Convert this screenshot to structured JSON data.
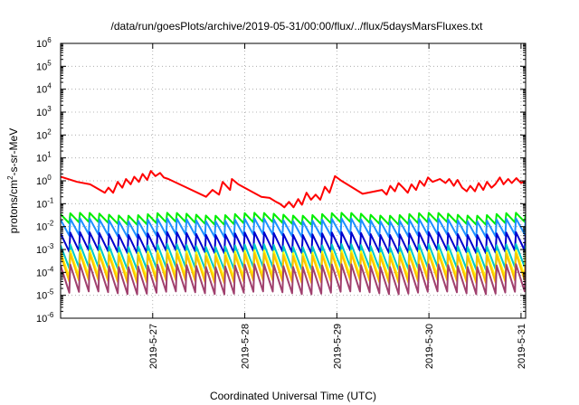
{
  "chart_data": {
    "type": "line",
    "title": "/data/run/goesPlots/archive/2019-05-31/00:00/flux/../flux/5daysMarsFluxes.txt",
    "xlabel": "Coordinated Universal Time (UTC)",
    "ylabel": {
      "base": "protons/cm",
      "sup": "2",
      "rest": "-s-sr-MeV"
    },
    "yscale": "log",
    "ylim": [
      1e-06,
      1000000.0
    ],
    "xlim": [
      0,
      5.05
    ],
    "x_ticks": [
      {
        "value": 1,
        "label": "2019-5-27"
      },
      {
        "value": 2,
        "label": "2019-5-28"
      },
      {
        "value": 3,
        "label": "2019-5-29"
      },
      {
        "value": 4,
        "label": "2019-5-30"
      },
      {
        "value": 5,
        "label": "2019-5-31"
      }
    ],
    "y_ticks": [
      {
        "value": 1e-06,
        "base": "10",
        "exp": "-6"
      },
      {
        "value": 1e-05,
        "base": "10",
        "exp": "-5"
      },
      {
        "value": 0.0001,
        "base": "10",
        "exp": "-4"
      },
      {
        "value": 0.001,
        "base": "10",
        "exp": "-3"
      },
      {
        "value": 0.01,
        "base": "10",
        "exp": "-2"
      },
      {
        "value": 0.1,
        "base": "10",
        "exp": "-1"
      },
      {
        "value": 1,
        "base": "10",
        "exp": "0"
      },
      {
        "value": 10,
        "base": "10",
        "exp": "1"
      },
      {
        "value": 100,
        "base": "10",
        "exp": "2"
      },
      {
        "value": 1000,
        "base": "10",
        "exp": "3"
      },
      {
        "value": 10000,
        "base": "10",
        "exp": "4"
      },
      {
        "value": 100000,
        "base": "10",
        "exp": "5"
      },
      {
        "value": 1000000,
        "base": "10",
        "exp": "6"
      }
    ],
    "grid": "dotted",
    "series": [
      {
        "color": "#ff0000",
        "x": [
          0,
          0.18,
          0.32,
          0.48,
          0.52,
          0.57,
          0.62,
          0.67,
          0.71,
          0.76,
          0.8,
          0.85,
          0.89,
          0.94,
          0.98,
          1.03,
          1.08,
          1.12,
          1.17,
          1.35,
          1.58,
          1.65,
          1.72,
          1.76,
          1.84,
          1.86,
          1.93,
          2.18,
          2.27,
          2.34,
          2.38,
          2.43,
          2.48,
          2.53,
          2.58,
          2.62,
          2.67,
          2.72,
          2.77,
          2.82,
          2.87,
          2.92,
          2.98,
          3.05,
          3.28,
          3.49,
          3.54,
          3.58,
          3.63,
          3.67,
          3.72,
          3.77,
          3.81,
          3.86,
          3.9,
          3.95,
          3.99,
          4.04,
          4.12,
          4.18,
          4.22,
          4.27,
          4.31,
          4.36,
          4.41,
          4.45,
          4.5,
          4.54,
          4.59,
          4.63,
          4.68,
          4.72,
          4.77,
          4.81,
          4.86,
          4.9,
          4.95,
          5.0,
          5.05
        ],
        "y": [
          1.5,
          0.9,
          0.7,
          0.3,
          0.5,
          0.3,
          0.9,
          0.5,
          1.2,
          0.7,
          1.5,
          0.9,
          2.0,
          1.1,
          2.7,
          1.6,
          2.2,
          1.4,
          1.2,
          0.55,
          0.2,
          0.4,
          0.25,
          0.9,
          0.4,
          1.2,
          0.7,
          0.2,
          0.18,
          0.12,
          0.1,
          0.07,
          0.12,
          0.07,
          0.16,
          0.09,
          0.3,
          0.15,
          0.25,
          0.15,
          0.55,
          0.3,
          1.6,
          1.0,
          0.27,
          0.4,
          0.25,
          0.6,
          0.35,
          0.8,
          0.5,
          0.3,
          0.7,
          0.4,
          1.0,
          0.6,
          1.4,
          0.9,
          1.2,
          0.8,
          1.2,
          0.6,
          1.1,
          0.5,
          0.35,
          0.6,
          0.35,
          0.8,
          0.4,
          0.9,
          0.5,
          0.7,
          1.4,
          0.7,
          1.2,
          0.8,
          1.3,
          0.8,
          1.0
        ]
      },
      {
        "color": "#00ee00",
        "peak": 0.035,
        "trough": 0.014
      },
      {
        "color": "#1e90ff",
        "peak": 0.02,
        "trough": 0.004
      },
      {
        "color": "#0000cd",
        "peak": 0.005,
        "trough": 0.0008
      },
      {
        "color": "#00c8c8",
        "peak": 0.0015,
        "trough": 0.00015
      },
      {
        "color": "#ffff00",
        "peak": 0.0008,
        "trough": 6e-05
      },
      {
        "color": "#ffc000",
        "peak": 0.0006,
        "trough": 4e-05
      },
      {
        "color": "#a0406e",
        "peak": 0.0002,
        "trough": 1.3e-05
      }
    ],
    "sawtooth_cycles": 48
  }
}
